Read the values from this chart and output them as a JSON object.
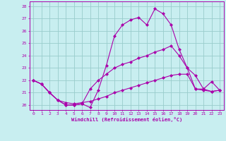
{
  "xlabel": "Windchill (Refroidissement éolien,°C)",
  "xlim": [
    -0.5,
    23.5
  ],
  "ylim": [
    19.6,
    28.4
  ],
  "yticks": [
    20,
    21,
    22,
    23,
    24,
    25,
    26,
    27,
    28
  ],
  "xticks": [
    0,
    1,
    2,
    3,
    4,
    5,
    6,
    7,
    8,
    9,
    10,
    11,
    12,
    13,
    14,
    15,
    16,
    17,
    18,
    19,
    20,
    21,
    22,
    23
  ],
  "bg_color": "#c8eef0",
  "line_color": "#aa00aa",
  "grid_color": "#99cccc",
  "curve1_x": [
    0,
    1,
    2,
    3,
    4,
    5,
    6,
    7,
    8,
    9,
    10,
    11,
    12,
    13,
    14,
    15,
    16,
    17,
    18,
    19,
    20,
    21,
    22,
    23
  ],
  "curve1_y": [
    22.0,
    21.7,
    21.0,
    20.4,
    20.0,
    20.0,
    20.1,
    19.8,
    21.2,
    23.2,
    25.6,
    26.5,
    26.9,
    27.1,
    26.5,
    27.8,
    27.4,
    26.5,
    24.5,
    23.0,
    22.4,
    21.3,
    21.1,
    21.2
  ],
  "curve2_x": [
    0,
    1,
    2,
    3,
    4,
    5,
    6,
    7,
    8,
    9,
    10,
    11,
    12,
    13,
    14,
    15,
    16,
    17,
    18,
    19,
    20,
    21,
    22,
    23
  ],
  "curve2_y": [
    22.0,
    21.7,
    21.0,
    20.4,
    20.0,
    20.0,
    20.1,
    21.3,
    22.0,
    22.5,
    23.0,
    23.3,
    23.5,
    23.8,
    24.0,
    24.3,
    24.5,
    24.8,
    24.0,
    23.0,
    21.3,
    21.3,
    21.9,
    21.2
  ],
  "curve3_x": [
    0,
    1,
    2,
    3,
    4,
    5,
    6,
    7,
    8,
    9,
    10,
    11,
    12,
    13,
    14,
    15,
    16,
    17,
    18,
    19,
    20,
    21,
    22,
    23
  ],
  "curve3_y": [
    22.0,
    21.7,
    21.0,
    20.4,
    20.2,
    20.1,
    20.2,
    20.3,
    20.5,
    20.7,
    21.0,
    21.2,
    21.4,
    21.6,
    21.8,
    22.0,
    22.2,
    22.4,
    22.5,
    22.5,
    21.3,
    21.2,
    21.1,
    21.2
  ]
}
